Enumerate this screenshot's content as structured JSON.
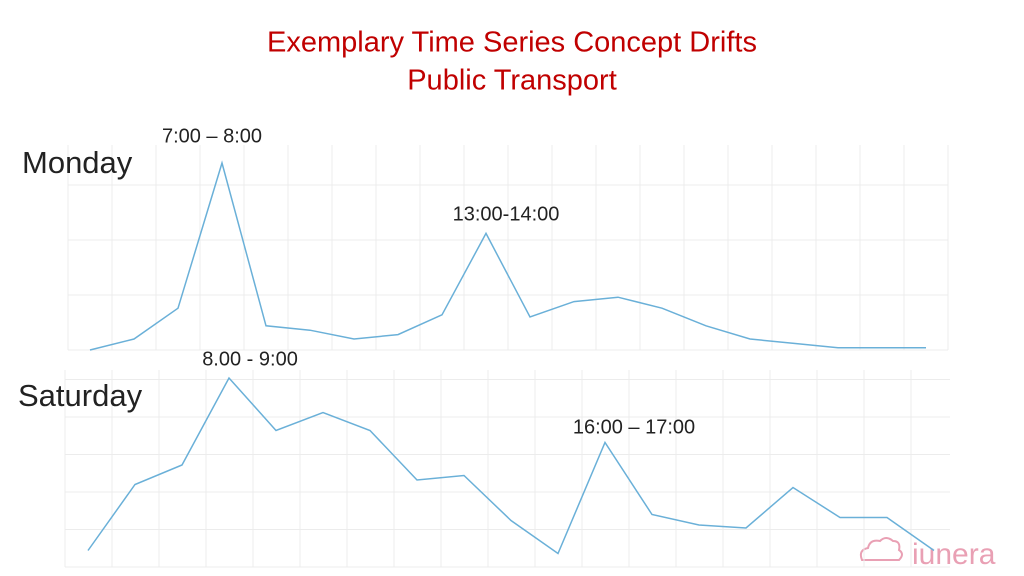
{
  "header": {
    "title": "Exemplary Time Series Concept Drifts",
    "subtitle": "Public Transport"
  },
  "logo": "iunera",
  "chart_data": [
    {
      "type": "line",
      "title": "Monday",
      "annotations": [
        "7:00 – 8:00",
        "13:00-14:00"
      ],
      "categories": [
        null,
        null,
        null,
        null,
        null,
        null,
        null,
        null,
        null,
        null,
        null,
        null,
        null,
        null,
        null,
        null,
        null,
        null,
        null,
        null
      ],
      "values": [
        0,
        5,
        19,
        85,
        11,
        9,
        5,
        7,
        16,
        53,
        15,
        22,
        24,
        19,
        11,
        5,
        3,
        1,
        1,
        1
      ],
      "color": "#6ab0d8",
      "ylim": [
        0,
        100
      ],
      "yticks": [
        0,
        25,
        50,
        75
      ],
      "grid": true
    },
    {
      "type": "line",
      "title": "Saturday",
      "annotations": [
        "8.00 - 9:00",
        "16:00 – 17:00"
      ],
      "categories": [
        null,
        null,
        null,
        null,
        null,
        null,
        null,
        null,
        null,
        null,
        null,
        null,
        null,
        null,
        null,
        null,
        null,
        null,
        null
      ],
      "values": [
        11,
        55,
        68,
        126,
        91,
        103,
        91,
        58,
        61,
        31,
        9,
        83,
        35,
        28,
        26,
        53,
        33,
        33,
        11
      ],
      "color": "#6ab0d8",
      "ylim": [
        0,
        130
      ],
      "yticks": [
        0,
        25,
        50,
        75,
        100,
        125
      ],
      "grid": true
    }
  ]
}
